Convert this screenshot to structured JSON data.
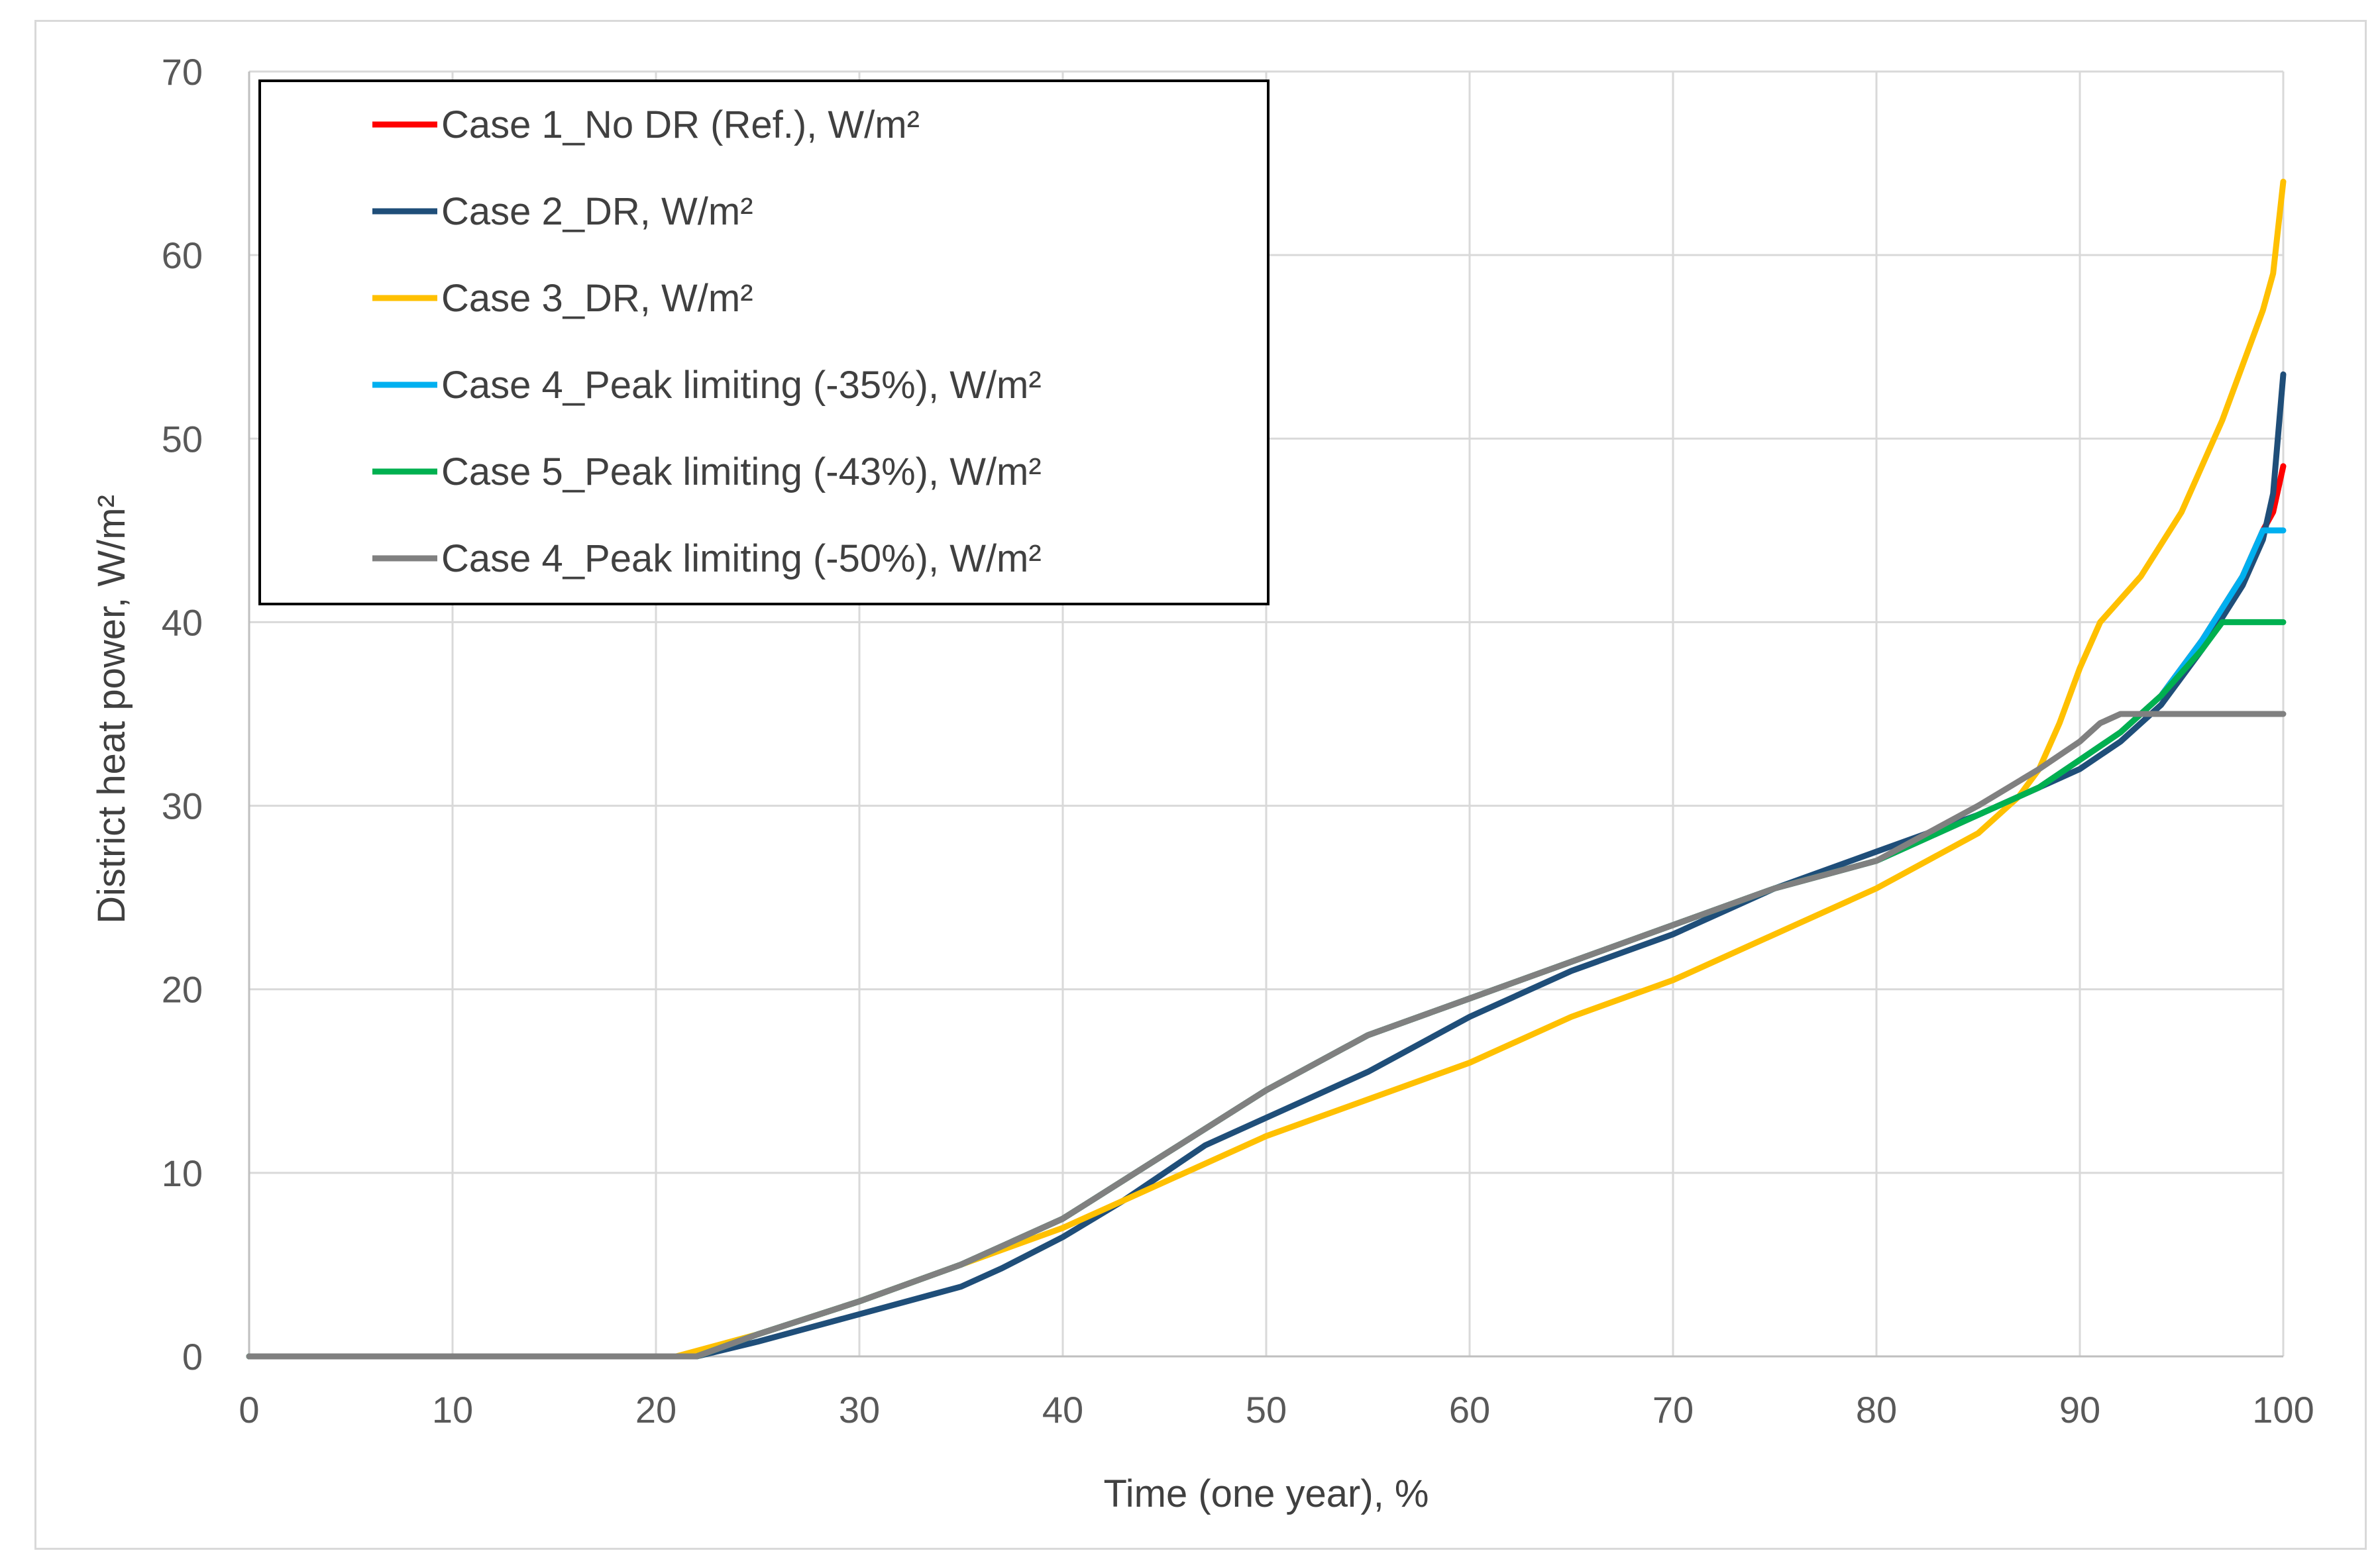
{
  "chart_data": {
    "type": "line",
    "title": "",
    "xlabel": "Time (one year), %",
    "ylabel": "District heat power, W/m²",
    "xlim": [
      0,
      100
    ],
    "ylim": [
      0,
      70
    ],
    "xticks": [
      0,
      10,
      20,
      30,
      40,
      50,
      60,
      70,
      80,
      90,
      100
    ],
    "yticks": [
      0,
      10,
      20,
      30,
      40,
      50,
      60,
      70
    ],
    "xtick_labels": [
      "0",
      "10",
      "20",
      "30",
      "40",
      "50",
      "60",
      "70",
      "80",
      "90",
      "100"
    ],
    "ytick_labels": [
      "0",
      "10",
      "20",
      "30",
      "40",
      "50",
      "60",
      "70"
    ],
    "grid": true,
    "legend_position": "top-left",
    "series": [
      {
        "name": "Case 1_No DR (Ref.), W/m²",
        "color": "#ff0000",
        "x": [
          0,
          20,
          21,
          22,
          25,
          30,
          35,
          40,
          45,
          50,
          55,
          60,
          65,
          70,
          75,
          80,
          85,
          88,
          90,
          92,
          94,
          96,
          98,
          99,
          99.5,
          100
        ],
        "y": [
          0,
          0,
          0,
          0,
          1.2,
          3.0,
          5.0,
          7.5,
          11.0,
          14.5,
          17.5,
          19.5,
          21.5,
          23.5,
          25.5,
          27.0,
          29.5,
          31.0,
          32.5,
          34.0,
          36.0,
          39.0,
          42.5,
          45.0,
          46.0,
          48.5
        ]
      },
      {
        "name": "Case 2_DR, W/m²",
        "color": "#1f4e79",
        "x": [
          0,
          20,
          22,
          25,
          30,
          35,
          37,
          40,
          43,
          47,
          50,
          55,
          60,
          65,
          70,
          75,
          80,
          85,
          88,
          90,
          92,
          94,
          96,
          98,
          99,
          99.5,
          100
        ],
        "y": [
          0,
          0,
          0,
          0.8,
          2.3,
          3.8,
          4.8,
          6.5,
          8.5,
          11.5,
          13.0,
          15.5,
          18.5,
          21.0,
          23.0,
          25.5,
          27.5,
          29.5,
          31.0,
          32.0,
          33.5,
          35.5,
          38.5,
          42.0,
          44.5,
          47.0,
          53.5
        ]
      },
      {
        "name": "Case 3_DR, W/m²",
        "color": "#ffc000",
        "x": [
          0,
          20,
          21,
          25,
          30,
          35,
          40,
          45,
          50,
          55,
          60,
          65,
          70,
          75,
          80,
          85,
          87,
          88,
          89,
          90,
          91,
          93,
          95,
          97,
          98,
          99,
          99.5,
          100
        ],
        "y": [
          0,
          0,
          0,
          1.2,
          3.0,
          5.0,
          7.0,
          9.5,
          12.0,
          14.0,
          16.0,
          18.5,
          20.5,
          23.0,
          25.5,
          28.5,
          30.5,
          32.0,
          34.5,
          37.5,
          40.0,
          42.5,
          46.0,
          51.0,
          54.0,
          57.0,
          59.0,
          64.0
        ]
      },
      {
        "name": "Case 4_Peak limiting (-35%), W/m²",
        "color": "#00b0f0",
        "x": [
          0,
          20,
          21,
          22,
          25,
          30,
          35,
          40,
          45,
          50,
          55,
          60,
          65,
          70,
          75,
          80,
          85,
          88,
          90,
          92,
          94,
          96,
          98,
          99,
          99.5,
          100
        ],
        "y": [
          0,
          0,
          0,
          0,
          1.2,
          3.0,
          5.0,
          7.5,
          11.0,
          14.5,
          17.5,
          19.5,
          21.5,
          23.5,
          25.5,
          27.0,
          29.5,
          31.0,
          32.5,
          34.0,
          36.0,
          39.0,
          42.5,
          45.0,
          45.0,
          45.0
        ]
      },
      {
        "name": "Case 5_Peak limiting (-43%), W/m²",
        "color": "#00b050",
        "x": [
          0,
          20,
          21,
          22,
          25,
          30,
          35,
          40,
          45,
          50,
          55,
          60,
          65,
          70,
          75,
          80,
          85,
          88,
          90,
          92,
          94,
          96,
          97,
          97.3,
          100
        ],
        "y": [
          0,
          0,
          0,
          0,
          1.2,
          3.0,
          5.0,
          7.5,
          11.0,
          14.5,
          17.5,
          19.5,
          21.5,
          23.5,
          25.5,
          27.0,
          29.5,
          31.0,
          32.5,
          34.0,
          36.0,
          38.5,
          40.0,
          40.0,
          40.0
        ]
      },
      {
        "name": "Case 4_Peak limiting (-50%), W/m²",
        "color": "#808080",
        "x": [
          0,
          20,
          21,
          22,
          25,
          30,
          35,
          40,
          45,
          50,
          55,
          60,
          65,
          70,
          75,
          80,
          85,
          88,
          90,
          91,
          92,
          100
        ],
        "y": [
          0,
          0,
          0,
          0,
          1.2,
          3.0,
          5.0,
          7.5,
          11.0,
          14.5,
          17.5,
          19.5,
          21.5,
          23.5,
          25.5,
          27.0,
          30.0,
          32.0,
          33.5,
          34.5,
          35.0,
          35.0
        ]
      }
    ]
  }
}
